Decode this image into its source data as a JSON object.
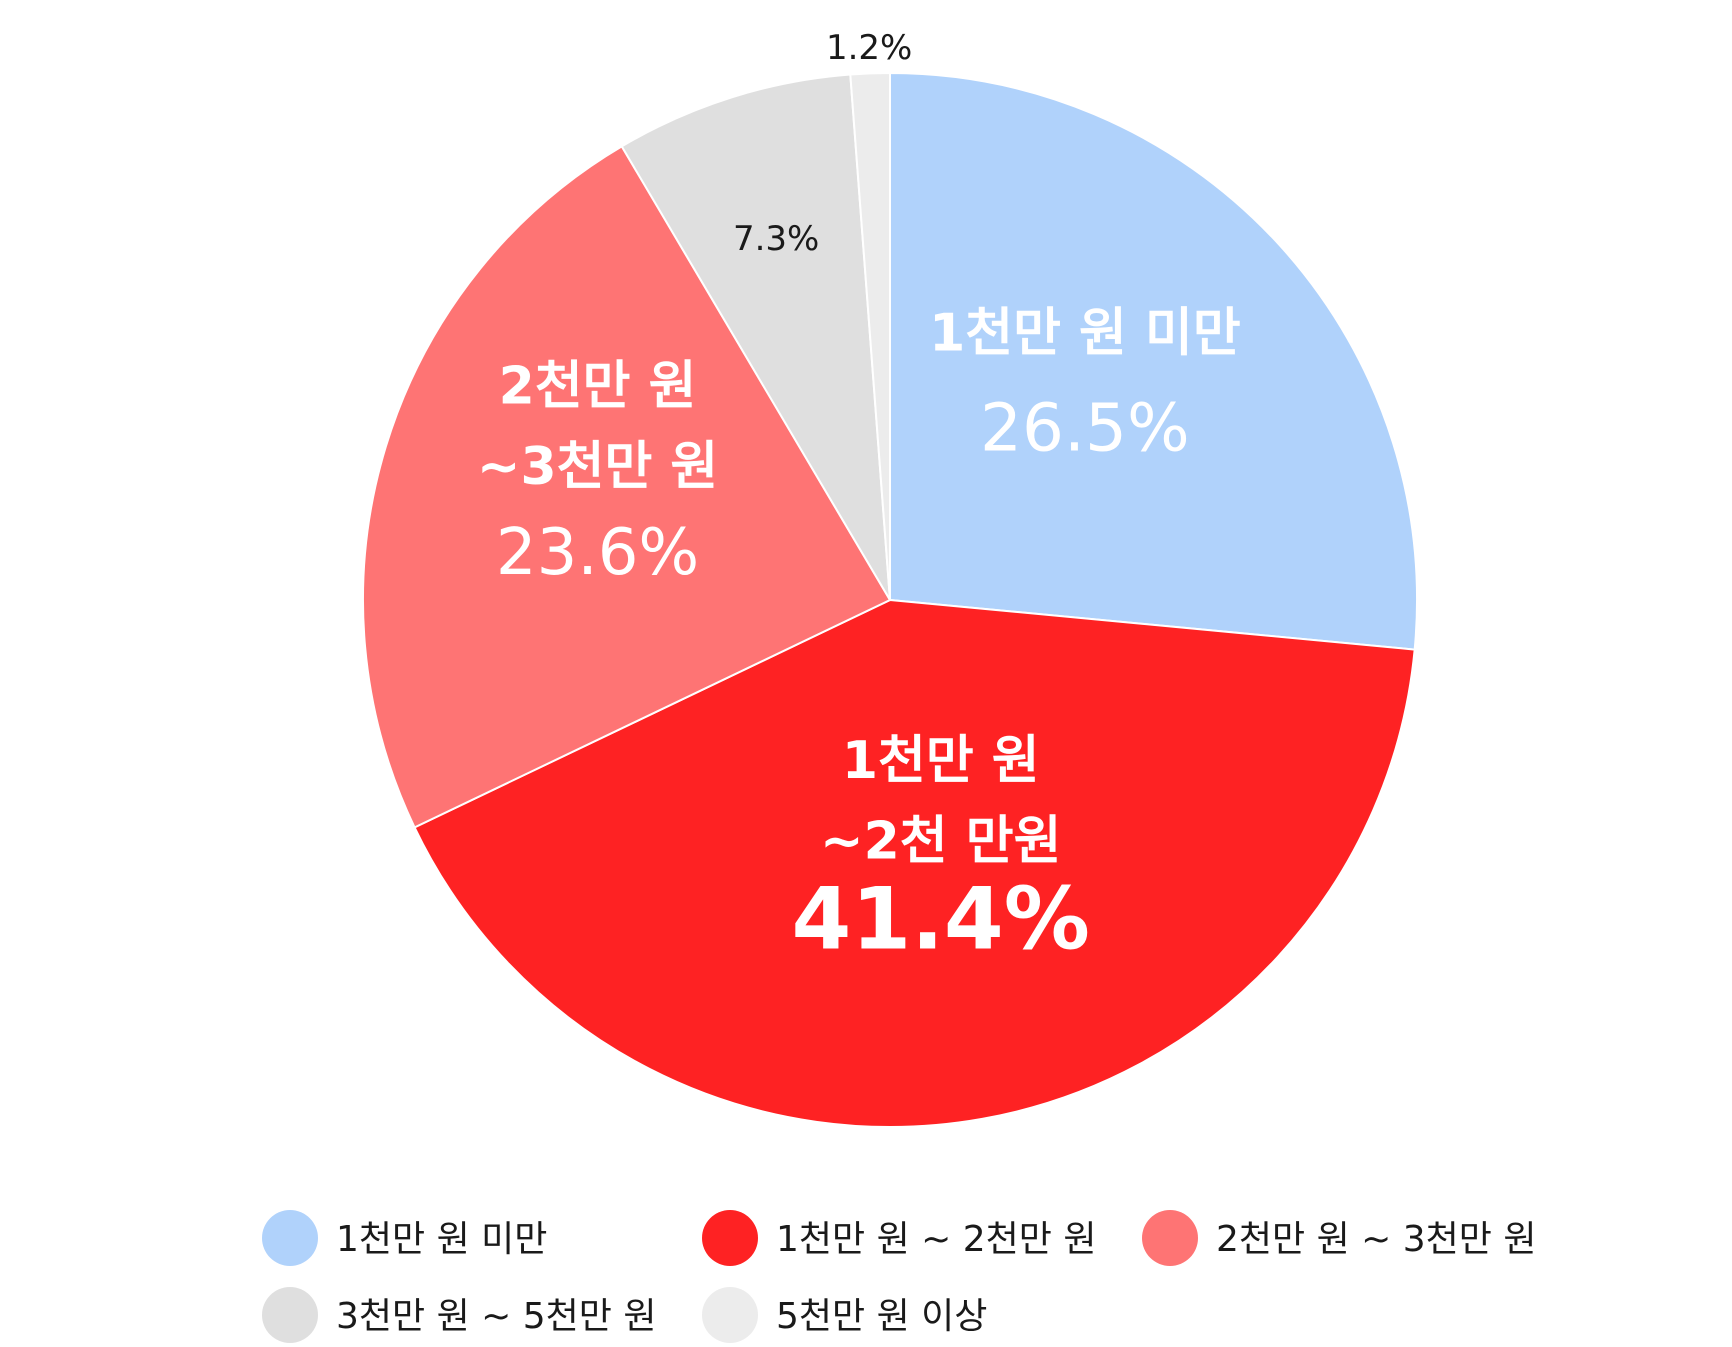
{
  "chart_data": {
    "type": "pie",
    "start": "12 o'clock",
    "direction": "clockwise",
    "slices": [
      {
        "label": "1천만 원 미만",
        "legend": "1천만 원 미만",
        "value": 26.5,
        "value_text": "26.5%",
        "label_lines": [
          "1천만 원 미만"
        ],
        "color": "#b0d2fb",
        "text_color": "#ffffff"
      },
      {
        "label": "1천만 원 ~ 2천만 원",
        "legend": "1천만 원 ~ 2천만 원",
        "value": 41.4,
        "value_text": "41.4%",
        "label_lines": [
          "1천만 원",
          "~2천 만원"
        ],
        "color": "#fe2223",
        "text_color": "#ffffff"
      },
      {
        "label": "2천만 원 ~ 3천만 원",
        "legend": "2천만 원 ~ 3천만 원",
        "value": 23.6,
        "value_text": "23.6%",
        "label_lines": [
          "2천만 원",
          "~3천만 원"
        ],
        "color": "#fe7474",
        "text_color": "#ffffff"
      },
      {
        "label": "3천만 원 ~ 5천만 원",
        "legend": "3천만 원 ~ 5천만 원",
        "value": 7.3,
        "value_text": "7.3%",
        "label_lines": [],
        "color": "#dfdfdf",
        "text_color": "#1a1a1a"
      },
      {
        "label": "5천만 원 이상",
        "legend": "5천만 원 이상",
        "value": 1.2,
        "value_text": "1.2%",
        "label_lines": [],
        "color": "#ececec",
        "text_color": "#1a1a1a"
      }
    ],
    "legend_placement": "bottom"
  }
}
